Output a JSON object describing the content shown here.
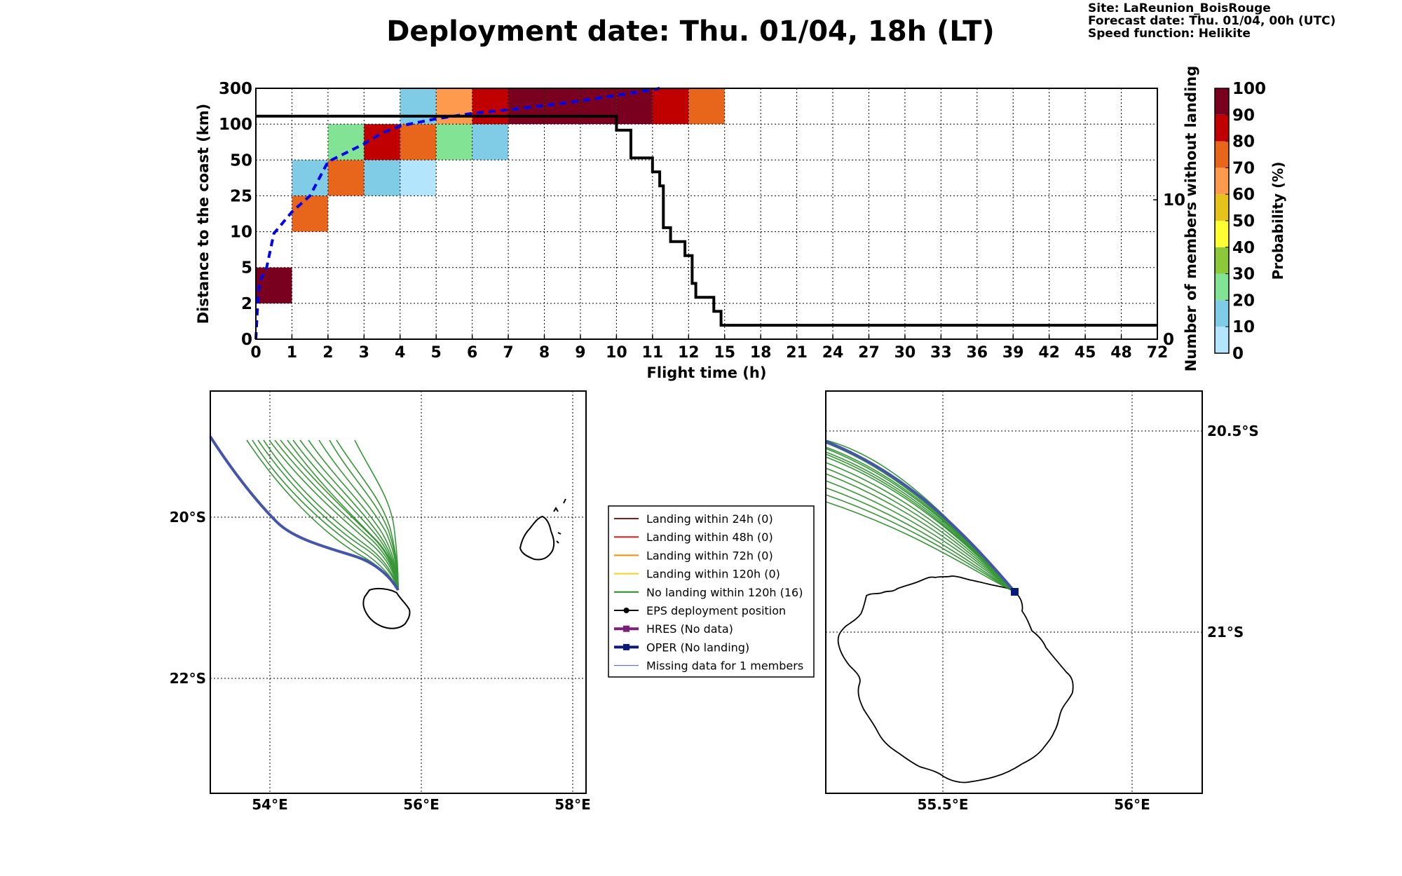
{
  "title": "Deployment date: Thu. 01/04, 18h (LT)",
  "site_info": [
    "Site: LaReunion_BoisRouge",
    "Forecast date: Thu. 01/04, 00h (UTC)",
    "Speed function: Helikite"
  ],
  "chart_data": [
    {
      "type": "heatmap",
      "xlabel": "Flight time (h)",
      "ylabel": "Distance to the coast (km)",
      "y2label": "Number of members without landing",
      "x_ticks": [
        "0",
        "1",
        "2",
        "3",
        "4",
        "5",
        "6",
        "7",
        "8",
        "9",
        "10",
        "11",
        "12",
        "15",
        "18",
        "21",
        "24",
        "27",
        "30",
        "33",
        "36",
        "39",
        "42",
        "45",
        "48",
        "72"
      ],
      "y_ticks": [
        "0",
        "2",
        "5",
        "10",
        "25",
        "50",
        "100",
        "300"
      ],
      "y2_ticks": [
        "0",
        "10"
      ],
      "y2lim": [
        0,
        18
      ],
      "cells": [
        {
          "col": 0,
          "row": 1,
          "p": 95
        },
        {
          "col": 1,
          "row": 3,
          "p": 75
        },
        {
          "col": 1,
          "row": 4,
          "p": 15
        },
        {
          "col": 2,
          "row": 4,
          "p": 75
        },
        {
          "col": 2,
          "row": 5,
          "p": 25
        },
        {
          "col": 3,
          "row": 4,
          "p": 15
        },
        {
          "col": 3,
          "row": 5,
          "p": 85
        },
        {
          "col": 4,
          "row": 4,
          "p": 5
        },
        {
          "col": 4,
          "row": 5,
          "p": 75
        },
        {
          "col": 4,
          "row": 6,
          "p": 15
        },
        {
          "col": 5,
          "row": 5,
          "p": 25
        },
        {
          "col": 5,
          "row": 6,
          "p": 65
        },
        {
          "col": 6,
          "row": 5,
          "p": 15
        },
        {
          "col": 6,
          "row": 6,
          "p": 85
        },
        {
          "col": 7,
          "row": 6,
          "p": 95
        },
        {
          "col": 8,
          "row": 6,
          "p": 95
        },
        {
          "col": 9,
          "row": 6,
          "p": 95
        },
        {
          "col": 10,
          "row": 6,
          "p": 95
        },
        {
          "col": 11,
          "row": 6,
          "p": 85
        },
        {
          "col": 12,
          "row": 6,
          "p": 75
        }
      ],
      "median_distance": {
        "x_index": [
          0,
          0.05,
          0.1,
          0.3,
          0.5,
          1,
          1.5,
          2,
          2.5,
          3,
          3.5,
          4,
          5,
          6,
          7,
          8,
          9,
          10,
          11,
          11.2
        ],
        "y_index": [
          0,
          1,
          1.6,
          2,
          2.95,
          3.55,
          4,
          4.95,
          5.2,
          5.45,
          5.75,
          5.95,
          6.15,
          6.3,
          6.4,
          6.52,
          6.65,
          6.8,
          6.96,
          7
        ]
      },
      "members_without_landing": {
        "x_index": [
          0,
          10,
          10,
          10.4,
          10.4,
          11,
          11,
          11.2,
          11.2,
          11.3,
          11.3,
          11.5,
          11.5,
          11.9,
          11.9,
          12.1,
          12.1,
          12.2,
          12.2,
          12.7,
          12.7,
          12.9,
          12.9,
          25
        ],
        "count": [
          16,
          16,
          15,
          15,
          13,
          13,
          12,
          12,
          11,
          11,
          8,
          8,
          7,
          7,
          6,
          6,
          4,
          4,
          3,
          3,
          2,
          2,
          1,
          1
        ]
      },
      "colorbar": {
        "label": "Probability (%)",
        "ticks": [
          "0",
          "10",
          "20",
          "30",
          "40",
          "50",
          "60",
          "70",
          "80",
          "90",
          "100"
        ],
        "colors": [
          "#b3e5fc",
          "#80cce6",
          "#82e394",
          "#8bc83a",
          "#ffff33",
          "#e6c31a",
          "#fd9a4e",
          "#e8651c",
          "#c00000",
          "#7a0020"
        ]
      }
    },
    {
      "type": "map",
      "lon_ticks": [
        "54°E",
        "56°E",
        "58°E"
      ],
      "lat_ticks": [
        "20°S",
        "22°S"
      ],
      "lon_range": [
        53.2,
        58.2
      ],
      "lat_range": [
        -23.5,
        -18.5
      ]
    },
    {
      "type": "map",
      "lon_ticks": [
        "55.5°E",
        "56°E"
      ],
      "lat_ticks": [
        "20.5°S",
        "21°S"
      ],
      "lon_range": [
        55.2,
        56.2
      ],
      "lat_range": [
        -21.45,
        -20.45
      ]
    }
  ],
  "legend": [
    {
      "label": "Landing within 24h (0)",
      "color": "#8b1a1a",
      "marker": "none",
      "width": 2
    },
    {
      "label": "Landing within 48h (0)",
      "color": "#e31a1c",
      "marker": "none",
      "width": 2
    },
    {
      "label": "Landing within 72h (0)",
      "color": "#ff8c00",
      "marker": "none",
      "width": 2
    },
    {
      "label": "Landing within 120h (0)",
      "color": "#f0d21a",
      "marker": "none",
      "width": 2
    },
    {
      "label": "No landing within 120h (16)",
      "color": "#228b22",
      "marker": "none",
      "width": 2
    },
    {
      "label": "EPS deployment position",
      "color": "#000000",
      "marker": "circle",
      "width": 2
    },
    {
      "label": "HRES (No data)",
      "color": "#7a1f7a",
      "marker": "square",
      "width": 4
    },
    {
      "label": "OPER (No landing)",
      "color": "#0a1a7a",
      "marker": "square",
      "width": 4
    },
    {
      "label": "Missing data for 1 members",
      "color": "#4455ee",
      "marker": "none",
      "width": 1
    }
  ]
}
